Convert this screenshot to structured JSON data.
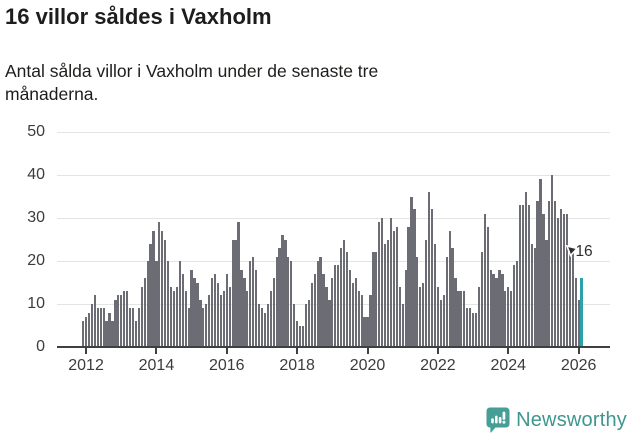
{
  "header": {
    "title": "16 villor såldes i Vaxholm",
    "subtitle": "Antal sålda villor i Vaxholm under de senaste tre månaderna."
  },
  "chart_data": {
    "type": "bar",
    "title": "16 villor såldes i Vaxholm",
    "subtitle": "Antal sålda villor i Vaxholm under de senaste tre månaderna.",
    "xlabel": "",
    "ylabel": "",
    "ylim": [
      0,
      50
    ],
    "yticks": [
      0,
      10,
      20,
      30,
      40,
      50
    ],
    "xtick_years": [
      2012,
      2014,
      2016,
      2018,
      2020,
      2022,
      2024,
      2026
    ],
    "grid": true,
    "frequency": "monthly",
    "x_start": "2011-12",
    "x_end": "2026-02",
    "values": [
      6,
      7,
      8,
      10,
      12,
      9,
      9,
      9,
      6,
      8,
      6,
      11,
      12,
      12,
      13,
      13,
      9,
      9,
      6,
      9,
      14,
      16,
      20,
      24,
      27,
      20,
      29,
      27,
      25,
      20,
      14,
      13,
      14,
      20,
      17,
      13,
      9,
      18,
      16,
      15,
      11,
      9,
      10,
      12,
      16,
      17,
      15,
      12,
      13,
      17,
      14,
      25,
      25,
      29,
      18,
      16,
      13,
      20,
      21,
      18,
      10,
      9,
      8,
      10,
      13,
      16,
      21,
      23,
      26,
      25,
      21,
      20,
      10,
      6,
      5,
      5,
      10,
      11,
      15,
      17,
      20,
      21,
      17,
      14,
      11,
      16,
      19,
      19,
      23,
      25,
      22,
      18,
      15,
      16,
      13,
      12,
      7,
      7,
      12,
      22,
      22,
      29,
      30,
      24,
      25,
      30,
      27,
      28,
      14,
      10,
      18,
      28,
      35,
      32,
      21,
      14,
      15,
      25,
      36,
      32,
      24,
      14,
      11,
      12,
      21,
      27,
      23,
      16,
      13,
      13,
      13,
      9,
      9,
      8,
      8,
      14,
      22,
      31,
      28,
      18,
      17,
      16,
      18,
      17,
      13,
      14,
      13,
      19,
      20,
      33,
      33,
      36,
      33,
      24,
      23,
      34,
      39,
      31,
      25,
      34,
      40,
      34,
      30,
      32,
      31,
      31,
      23,
      22,
      16,
      11,
      16
    ],
    "bar_color": "#6c6c74",
    "highlight_color": "#2ba2a8",
    "highlight_index": 170,
    "annotation": {
      "text": "16",
      "target_index": 170
    },
    "legend_position": "none"
  },
  "footer": {
    "brand": "Newsworthy",
    "brand_color": "#3f968f",
    "icon": "newsworthy-bubble-barchart-icon"
  }
}
